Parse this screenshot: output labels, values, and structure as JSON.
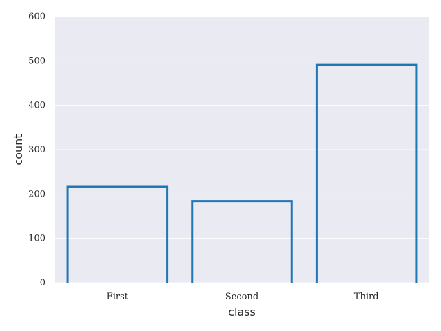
{
  "chart_data": {
    "type": "bar",
    "style": "outlined bars",
    "xlabel": "class",
    "ylabel": "count",
    "categories": [
      "First",
      "Second",
      "Third"
    ],
    "values": [
      216,
      184,
      491
    ],
    "ylim": [
      0,
      600
    ],
    "yticks": [
      0,
      100,
      200,
      300,
      400,
      500,
      600
    ],
    "grid": true,
    "colors": {
      "plot_background": "#eaeaf2",
      "grid": "#ffffff",
      "bar_edge": "#1f77b4",
      "bar_fill": "none"
    }
  }
}
